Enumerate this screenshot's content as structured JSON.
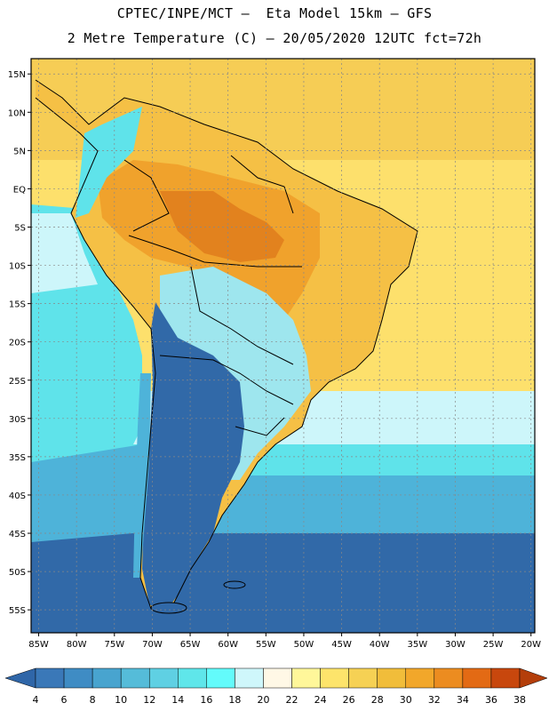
{
  "title_line1": "CPTEC/INPE/MCT –  Eta Model 15km – GFS",
  "title_line2": "2 Metre Temperature (C) – 20/05/2020 12UTC fct=72h",
  "lat_labels": [
    "15N",
    "10N",
    "5N",
    "EQ",
    "5S",
    "10S",
    "15S",
    "20S",
    "25S",
    "30S",
    "35S",
    "40S",
    "45S",
    "50S",
    "55S"
  ],
  "lon_labels": [
    "85W",
    "80W",
    "75W",
    "70W",
    "65W",
    "60W",
    "55W",
    "50W",
    "45W",
    "40W",
    "35W",
    "30W",
    "25W",
    "20W"
  ],
  "colorbar": {
    "ticks": [
      "4",
      "6",
      "8",
      "10",
      "12",
      "14",
      "16",
      "18",
      "20",
      "22",
      "24",
      "26",
      "28",
      "30",
      "32",
      "34",
      "36",
      "38"
    ],
    "colors": [
      "#3a78b8",
      "#3f8cc4",
      "#48a4cf",
      "#55bcd9",
      "#5fd0e3",
      "#5fe6ea",
      "#63fbfb",
      "#cff7fb",
      "#fff8e6",
      "#fff79a",
      "#fde46b",
      "#f6d154",
      "#f1bd3a",
      "#f2a72a",
      "#ec8c20",
      "#e36a14",
      "#c8470d"
    ],
    "left_color": "#2f66a8",
    "right_color": "#b43e0a"
  },
  "colors": {
    "deep_blue": "#3169a8",
    "ocean_cool": "#4eb3d9",
    "ocean_cyan": "#5fe3ea",
    "ocean_light": "#cdf6fa",
    "ocean_warm": "#fde06c",
    "ocean_hot": "#f6cd55",
    "land_hot": "#f0a22c",
    "land_very_hot": "#e2821e",
    "land_warm": "#f5c045",
    "land_cool": "#9ee6ee",
    "border": "#000000"
  }
}
